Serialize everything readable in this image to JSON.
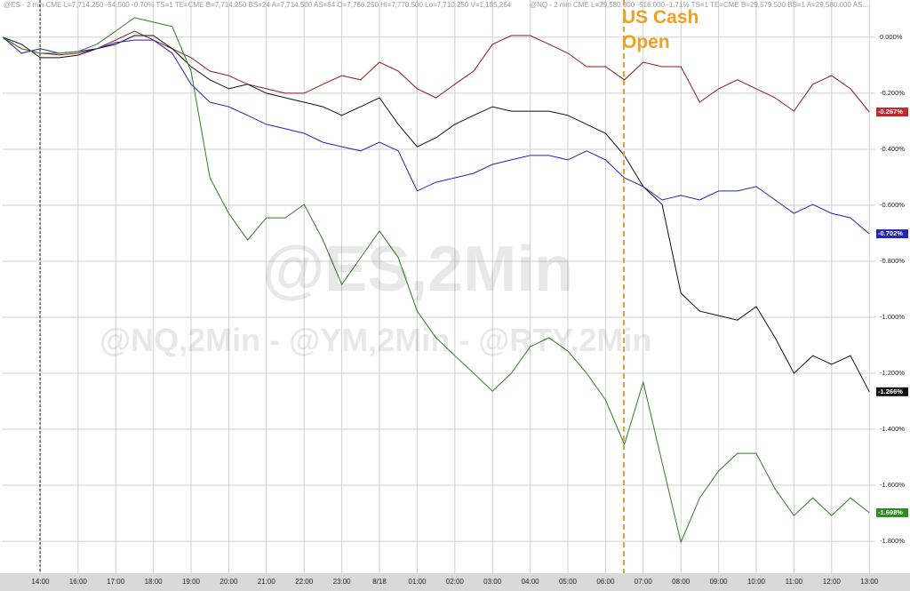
{
  "chart_data": {
    "type": "line",
    "header": [
      "@ES - 2 min CME L=7,714.250 -54.500 -0.70% TS=1 TE=CME B=7,714.250 BS=24 A=7,714.500 AS=64 O=7,766.250 Hi=7,770.500 Lo=7,710.250 V=1,185,264",
      "@NQ - 2 min CME L=29,580.000 -516.000 -1.71% TS=1 TE=CME B=29,579.500 BS=1 A=29,580.000 AS..."
    ],
    "annotations": [
      "US Cash Open",
      "@ES,2Min",
      "@NQ,2Min - @YM,2Min - @RTY,2Min"
    ],
    "categories": [
      null,
      null,
      "14:00",
      null,
      "16:00",
      null,
      "17:00",
      null,
      "18:00",
      null,
      "19:00",
      null,
      "20:00",
      null,
      "21:00",
      null,
      "22:00",
      null,
      "23:00",
      null,
      "8/18",
      null,
      "01:00",
      null,
      "02:00",
      null,
      "03:00",
      null,
      "04:00",
      null,
      "05:00",
      null,
      "06:00",
      null,
      "07:00",
      null,
      "08:00",
      null,
      "09:00",
      null,
      "10:00",
      null,
      "11:00",
      null,
      "12:00",
      null,
      "13:00"
    ],
    "series": [
      {
        "color": "#8b1a1a",
        "values": [
          0.0,
          -0.041,
          -0.057,
          -0.063,
          -0.057,
          -0.041,
          -0.01,
          0.022,
          -0.01,
          -0.041,
          -0.073,
          -0.121,
          -0.137,
          -0.168,
          -0.184,
          -0.2,
          -0.2,
          -0.168,
          -0.137,
          -0.152,
          -0.089,
          -0.121,
          -0.184,
          -0.216,
          -0.168,
          -0.121,
          -0.025,
          0.006,
          0.006,
          -0.025,
          -0.057,
          -0.105,
          -0.105,
          -0.152,
          -0.089,
          -0.105,
          -0.105,
          -0.232,
          -0.184,
          -0.152,
          -0.184,
          -0.216,
          -0.264,
          -0.168,
          -0.137,
          -0.184,
          -0.267
        ],
        "value_labels": [
          null,
          null,
          null,
          null,
          null,
          null,
          null,
          null,
          null,
          null,
          null,
          null,
          null,
          null,
          null,
          null,
          null,
          null,
          null,
          null,
          null,
          null,
          null,
          null,
          null,
          null,
          null,
          null,
          null,
          null,
          null,
          null,
          null,
          null,
          null,
          null,
          null,
          null,
          null,
          null,
          null,
          null,
          null,
          null,
          null,
          null,
          "-0.267%"
        ],
        "label_bg": "#c0282d"
      },
      {
        "color": "#111111",
        "values": [
          0.0,
          -0.025,
          -0.073,
          -0.073,
          -0.064,
          -0.041,
          -0.025,
          0.006,
          0.006,
          -0.041,
          -0.105,
          -0.152,
          -0.184,
          -0.168,
          -0.2,
          -0.216,
          -0.232,
          -0.248,
          -0.279,
          -0.248,
          -0.216,
          -0.311,
          -0.391,
          -0.359,
          -0.311,
          -0.279,
          -0.248,
          -0.264,
          -0.264,
          -0.264,
          -0.279,
          -0.311,
          -0.343,
          -0.422,
          -0.533,
          -0.597,
          -0.914,
          -0.978,
          -0.994,
          -1.01,
          -0.962,
          -1.073,
          -1.2,
          -1.137,
          -1.168,
          -1.137,
          -1.266
        ],
        "value_labels": [
          null,
          null,
          null,
          null,
          null,
          null,
          null,
          null,
          null,
          null,
          null,
          null,
          null,
          null,
          null,
          null,
          null,
          null,
          null,
          null,
          null,
          null,
          null,
          null,
          null,
          null,
          null,
          null,
          null,
          null,
          null,
          null,
          null,
          null,
          null,
          null,
          null,
          null,
          null,
          null,
          null,
          null,
          null,
          null,
          null,
          null,
          "-1.266%"
        ],
        "label_bg": "#111111"
      },
      {
        "color": "#2323b8",
        "values": [
          0.0,
          -0.057,
          -0.041,
          -0.057,
          -0.051,
          -0.041,
          -0.019,
          -0.01,
          -0.01,
          -0.057,
          -0.168,
          -0.232,
          -0.248,
          -0.279,
          -0.311,
          -0.327,
          -0.343,
          -0.375,
          -0.391,
          -0.406,
          -0.375,
          -0.406,
          -0.549,
          -0.518,
          -0.502,
          -0.486,
          -0.454,
          -0.438,
          -0.422,
          -0.422,
          -0.438,
          -0.406,
          -0.438,
          -0.502,
          -0.533,
          -0.581,
          -0.565,
          -0.581,
          -0.549,
          -0.549,
          -0.533,
          -0.581,
          -0.629,
          -0.597,
          -0.629,
          -0.645,
          -0.702
        ],
        "value_labels": [
          null,
          null,
          null,
          null,
          null,
          null,
          null,
          null,
          null,
          null,
          null,
          null,
          null,
          null,
          null,
          null,
          null,
          null,
          null,
          null,
          null,
          null,
          null,
          null,
          null,
          null,
          null,
          null,
          null,
          null,
          null,
          null,
          null,
          null,
          null,
          null,
          null,
          null,
          null,
          null,
          null,
          null,
          null,
          null,
          null,
          null,
          "-0.702%"
        ],
        "label_bg": "#2323b8"
      },
      {
        "color": "#2e7d1f",
        "values": [
          0.0,
          -0.041,
          -0.057,
          -0.057,
          -0.051,
          -0.025,
          0.022,
          0.07,
          0.054,
          0.038,
          -0.121,
          -0.502,
          -0.629,
          -0.724,
          -0.645,
          -0.645,
          -0.597,
          -0.724,
          -0.883,
          -0.787,
          -0.692,
          -0.787,
          -0.978,
          -1.073,
          -1.137,
          -1.2,
          -1.264,
          -1.2,
          -1.105,
          -1.073,
          -1.121,
          -1.2,
          -1.295,
          -1.454,
          -1.232,
          -1.518,
          -1.803,
          -1.645,
          -1.549,
          -1.486,
          -1.486,
          -1.613,
          -1.708,
          -1.645,
          -1.708,
          -1.645,
          -1.698
        ],
        "value_labels": [
          null,
          null,
          null,
          null,
          null,
          null,
          null,
          null,
          null,
          null,
          null,
          null,
          null,
          null,
          null,
          null,
          null,
          null,
          null,
          null,
          null,
          null,
          null,
          null,
          null,
          null,
          null,
          null,
          null,
          null,
          null,
          null,
          null,
          null,
          null,
          null,
          null,
          null,
          null,
          null,
          null,
          null,
          null,
          null,
          null,
          null,
          "-1.698%"
        ],
        "label_bg": "#2e8b1f"
      }
    ],
    "ylim": [
      -1.914,
      0.133
    ],
    "yticks": [
      {
        "value": 0,
        "label": "0.000%"
      },
      {
        "value": -0.2,
        "label": "-0.200%"
      },
      {
        "value": -0.4,
        "label": "-0.400%"
      },
      {
        "value": -0.6,
        "label": "-0.600%"
      },
      {
        "value": -0.8,
        "label": "-0.800%"
      },
      {
        "value": -1.0,
        "label": "-1.000%"
      },
      {
        "value": -1.2,
        "label": "-1.200%"
      },
      {
        "value": -1.4,
        "label": "-1.400%"
      },
      {
        "value": -1.6,
        "label": "-1.600%"
      },
      {
        "value": -1.8,
        "label": "-1.800%"
      }
    ],
    "grid": true
  }
}
